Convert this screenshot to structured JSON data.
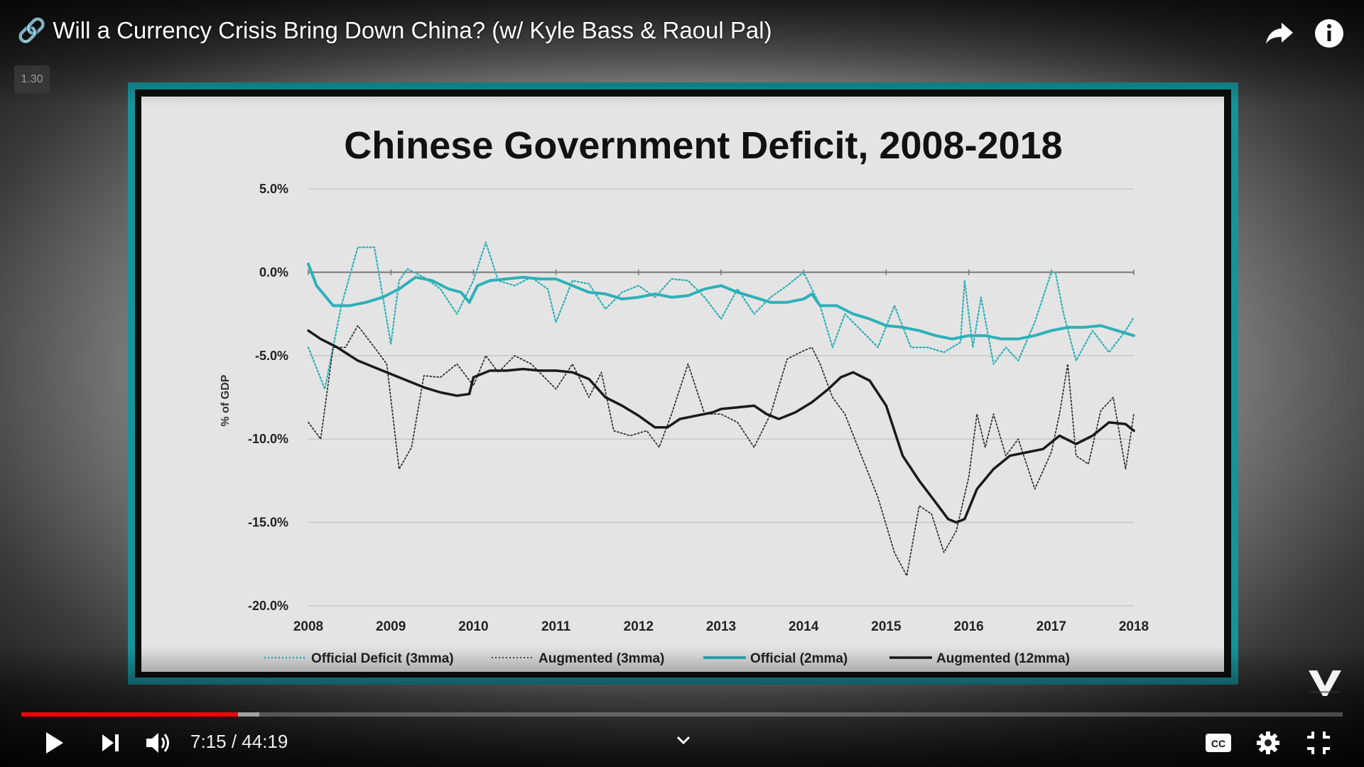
{
  "video": {
    "title": "🔗 Will a Currency Crisis Bring Down China? (w/ Kyle Bass & Raoul Pal)",
    "speed_badge": "1.30"
  },
  "controls": {
    "current_time": "7:15",
    "separator": " / ",
    "duration": "44:19",
    "played_fraction": 0.164,
    "buffered_fraction": 0.18,
    "progress_color": "#ff0000",
    "icons": {
      "share": "share-arrow-icon",
      "info": "info-icon",
      "play": "play-icon",
      "next": "skip-next-icon",
      "volume": "volume-icon",
      "chevron": "chevron-down-icon",
      "captions": "closed-captions-icon",
      "settings": "gear-icon",
      "exit_fullscreen": "exit-fullscreen-icon"
    }
  },
  "chart_data": {
    "type": "line",
    "title": "Chinese Government Deficit, 2008-2018",
    "xlabel": "",
    "ylabel": "% of GDP",
    "x_ticks": [
      "2008",
      "2009",
      "2010",
      "2011",
      "2012",
      "2013",
      "2014",
      "2015",
      "2016",
      "2017",
      "2018"
    ],
    "y_ticks": [
      "5.0%",
      "0.0%",
      "-5.0%",
      "-10.0%",
      "-15.0%",
      "-20.0%"
    ],
    "xlim": [
      2008,
      2018
    ],
    "ylim": [
      -20,
      5
    ],
    "grid": true,
    "legend_position": "bottom",
    "colors": {
      "teal": "#2db0b8",
      "black": "#1a1a1a",
      "frame_teal": "#17939c"
    },
    "series": [
      {
        "name": "Official Deficit (3mma)",
        "style": "dotted-teal",
        "x": [
          2008.0,
          2008.2,
          2008.4,
          2008.6,
          2008.8,
          2009.0,
          2009.1,
          2009.2,
          2009.4,
          2009.6,
          2009.8,
          2010.0,
          2010.15,
          2010.3,
          2010.5,
          2010.7,
          2010.9,
          2011.0,
          2011.2,
          2011.4,
          2011.6,
          2011.8,
          2012.0,
          2012.2,
          2012.4,
          2012.6,
          2012.8,
          2013.0,
          2013.2,
          2013.4,
          2013.6,
          2013.8,
          2014.0,
          2014.1,
          2014.2,
          2014.35,
          2014.5,
          2014.7,
          2014.9,
          2015.1,
          2015.3,
          2015.5,
          2015.7,
          2015.9,
          2015.95,
          2016.05,
          2016.15,
          2016.3,
          2016.45,
          2016.6,
          2016.8,
          2017.0,
          2017.05,
          2017.15,
          2017.3,
          2017.5,
          2017.7,
          2017.9,
          2018.0
        ],
        "y": [
          -4.5,
          -7.0,
          -2.0,
          1.5,
          1.5,
          -4.3,
          -0.5,
          0.2,
          -0.3,
          -1.0,
          -2.5,
          -0.5,
          1.8,
          -0.5,
          -0.8,
          -0.3,
          -1.0,
          -3.0,
          -0.5,
          -0.7,
          -2.2,
          -1.2,
          -0.8,
          -1.5,
          -0.4,
          -0.5,
          -1.5,
          -2.8,
          -1.0,
          -2.5,
          -1.5,
          -0.8,
          0.0,
          -1.0,
          -2.0,
          -4.5,
          -2.5,
          -3.5,
          -4.5,
          -2.0,
          -4.5,
          -4.5,
          -4.8,
          -4.2,
          -0.5,
          -4.5,
          -1.5,
          -5.5,
          -4.5,
          -5.3,
          -3.0,
          0.0,
          0.0,
          -2.5,
          -5.3,
          -3.5,
          -4.8,
          -3.5,
          -2.7
        ]
      },
      {
        "name": "Augmented (3mma)",
        "style": "dotted-black",
        "x": [
          2008.0,
          2008.15,
          2008.3,
          2008.45,
          2008.6,
          2008.8,
          2008.95,
          2009.1,
          2009.25,
          2009.4,
          2009.6,
          2009.8,
          2010.0,
          2010.15,
          2010.3,
          2010.5,
          2010.7,
          2010.9,
          2011.0,
          2011.2,
          2011.4,
          2011.55,
          2011.7,
          2011.9,
          2012.1,
          2012.25,
          2012.4,
          2012.6,
          2012.8,
          2013.0,
          2013.2,
          2013.4,
          2013.6,
          2013.8,
          2014.0,
          2014.1,
          2014.2,
          2014.35,
          2014.5,
          2014.7,
          2014.9,
          2015.1,
          2015.25,
          2015.4,
          2015.55,
          2015.7,
          2015.85,
          2016.0,
          2016.1,
          2016.2,
          2016.3,
          2016.45,
          2016.6,
          2016.8,
          2017.0,
          2017.1,
          2017.2,
          2017.3,
          2017.45,
          2017.6,
          2017.75,
          2017.9,
          2018.0
        ],
        "y": [
          -9.0,
          -10.0,
          -4.5,
          -4.5,
          -3.2,
          -4.5,
          -5.5,
          -11.8,
          -10.5,
          -6.2,
          -6.3,
          -5.5,
          -6.8,
          -5.0,
          -6.0,
          -5.0,
          -5.5,
          -6.5,
          -7.0,
          -5.5,
          -7.5,
          -6.0,
          -9.5,
          -9.8,
          -9.5,
          -10.5,
          -8.5,
          -5.5,
          -8.5,
          -8.5,
          -9.0,
          -10.5,
          -8.5,
          -5.2,
          -4.7,
          -4.5,
          -5.5,
          -7.5,
          -8.5,
          -11.0,
          -13.5,
          -16.8,
          -18.2,
          -14.0,
          -14.5,
          -16.8,
          -15.5,
          -12.3,
          -8.5,
          -10.5,
          -8.5,
          -11.0,
          -10.0,
          -13.0,
          -10.8,
          -8.5,
          -5.5,
          -11.0,
          -11.5,
          -8.3,
          -7.5,
          -11.8,
          -8.5
        ]
      },
      {
        "name": "Official (2mma)",
        "style": "solid-teal",
        "x": [
          2008.0,
          2008.1,
          2008.3,
          2008.5,
          2008.7,
          2008.9,
          2009.1,
          2009.3,
          2009.5,
          2009.7,
          2009.85,
          2009.95,
          2010.05,
          2010.2,
          2010.4,
          2010.6,
          2010.8,
          2011.0,
          2011.2,
          2011.4,
          2011.6,
          2011.8,
          2012.0,
          2012.2,
          2012.4,
          2012.6,
          2012.8,
          2013.0,
          2013.2,
          2013.4,
          2013.6,
          2013.8,
          2014.0,
          2014.1,
          2014.2,
          2014.4,
          2014.6,
          2014.8,
          2015.0,
          2015.2,
          2015.4,
          2015.6,
          2015.8,
          2016.0,
          2016.2,
          2016.4,
          2016.6,
          2016.8,
          2017.0,
          2017.2,
          2017.4,
          2017.6,
          2017.8,
          2018.0
        ],
        "y": [
          0.5,
          -0.8,
          -2.0,
          -2.0,
          -1.8,
          -1.5,
          -1.0,
          -0.3,
          -0.5,
          -1.0,
          -1.2,
          -1.8,
          -0.8,
          -0.5,
          -0.4,
          -0.3,
          -0.4,
          -0.4,
          -0.8,
          -1.2,
          -1.3,
          -1.6,
          -1.5,
          -1.3,
          -1.5,
          -1.4,
          -1.0,
          -0.8,
          -1.2,
          -1.5,
          -1.8,
          -1.8,
          -1.6,
          -1.3,
          -2.0,
          -2.0,
          -2.5,
          -2.8,
          -3.2,
          -3.3,
          -3.5,
          -3.8,
          -4.0,
          -3.8,
          -3.8,
          -4.0,
          -4.0,
          -3.8,
          -3.5,
          -3.3,
          -3.3,
          -3.2,
          -3.5,
          -3.8
        ]
      },
      {
        "name": "Augmented (12mma)",
        "style": "solid-black",
        "x": [
          2008.0,
          2008.15,
          2008.35,
          2008.6,
          2008.85,
          2009.0,
          2009.2,
          2009.4,
          2009.6,
          2009.8,
          2009.95,
          2010.0,
          2010.2,
          2010.4,
          2010.6,
          2010.8,
          2011.0,
          2011.2,
          2011.4,
          2011.6,
          2011.8,
          2012.0,
          2012.2,
          2012.35,
          2012.5,
          2012.7,
          2012.9,
          2013.0,
          2013.2,
          2013.4,
          2013.55,
          2013.7,
          2013.9,
          2014.1,
          2014.3,
          2014.45,
          2014.6,
          2014.8,
          2015.0,
          2015.2,
          2015.4,
          2015.6,
          2015.75,
          2015.85,
          2015.95,
          2016.1,
          2016.3,
          2016.5,
          2016.7,
          2016.9,
          2017.0,
          2017.1,
          2017.3,
          2017.5,
          2017.7,
          2017.9,
          2018.0
        ],
        "y": [
          -3.5,
          -4.0,
          -4.5,
          -5.3,
          -5.8,
          -6.1,
          -6.5,
          -6.9,
          -7.2,
          -7.4,
          -7.3,
          -6.3,
          -5.9,
          -5.9,
          -5.8,
          -5.9,
          -5.9,
          -6.0,
          -6.4,
          -7.5,
          -8.0,
          -8.6,
          -9.3,
          -9.3,
          -8.8,
          -8.6,
          -8.4,
          -8.2,
          -8.1,
          -8.0,
          -8.5,
          -8.8,
          -8.4,
          -7.8,
          -7.0,
          -6.3,
          -6.0,
          -6.5,
          -8.0,
          -11.0,
          -12.5,
          -13.8,
          -14.8,
          -15.0,
          -14.8,
          -13.0,
          -11.8,
          -11.0,
          -10.8,
          -10.6,
          -10.2,
          -9.8,
          -10.3,
          -9.8,
          -9.0,
          -9.1,
          -9.5
        ]
      }
    ]
  }
}
